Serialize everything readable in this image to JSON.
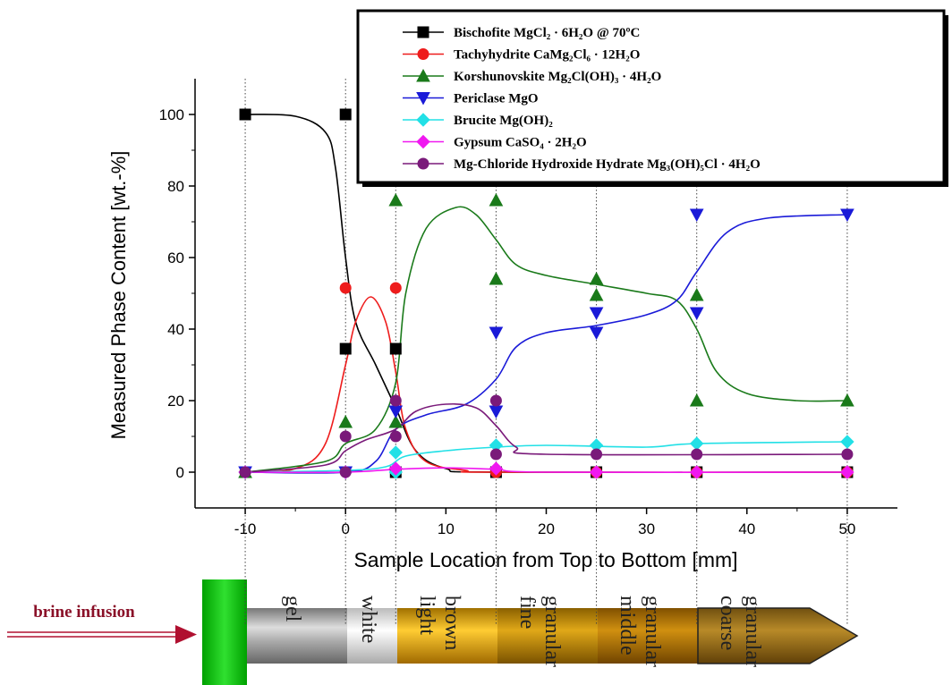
{
  "chart_data": {
    "type": "line",
    "y_label": "Measured Phase Content [wt.-%]",
    "x_label": "Sample Location from Top to Bottom [mm]",
    "xlim": [
      -15,
      55
    ],
    "xticks": [
      -10,
      0,
      10,
      20,
      30,
      40,
      50
    ],
    "ylim": [
      -10,
      110
    ],
    "yticks": [
      0,
      20,
      40,
      60,
      80,
      100
    ],
    "legend": "top-right",
    "series": [
      {
        "name": "Bischofite  MgCl₂ · 6H₂O @ 70ºC",
        "color": "#000000",
        "marker": "square",
        "x": [
          -10,
          0,
          0,
          5,
          5,
          15,
          25,
          35,
          50
        ],
        "values": [
          100,
          100,
          34.5,
          34.5,
          0,
          0,
          0,
          0,
          0
        ],
        "line_x": [
          -10,
          -5,
          -2,
          -1,
          0,
          1,
          3,
          5,
          7,
          10,
          15,
          50
        ],
        "line_values": [
          100,
          99.5,
          95,
          85,
          60,
          42,
          30,
          18,
          6,
          1,
          0,
          0
        ]
      },
      {
        "name": "Tachyhydrite  CaMg₂Cl₆ · 12H₂O",
        "color": "#ee1c1c",
        "marker": "circle",
        "x": [
          -10,
          0,
          5,
          15,
          25,
          35,
          50
        ],
        "values": [
          0,
          51.5,
          51.5,
          0,
          0,
          0,
          0
        ],
        "line_x": [
          -10,
          -5,
          -2,
          0,
          1,
          2.5,
          4,
          5,
          6,
          8,
          12,
          15,
          50
        ],
        "line_values": [
          0,
          1,
          8,
          30,
          42,
          49,
          42,
          28,
          12,
          3,
          0.5,
          0,
          0
        ]
      },
      {
        "name": "Korshunovskite  Mg₂Cl(OH)₃ · 4H₂O",
        "color": "#1a7a1a",
        "marker": "triangle-up",
        "x": [
          -10,
          0,
          5,
          5,
          15,
          15,
          25,
          25,
          35,
          35,
          50
        ],
        "values": [
          0,
          14,
          14,
          76,
          76,
          54,
          54,
          49.5,
          49.5,
          20,
          20
        ],
        "line_x": [
          -10,
          -2,
          0,
          3,
          5,
          6,
          8,
          11,
          13,
          15,
          17,
          20,
          25,
          30,
          33,
          35,
          37,
          40,
          45,
          50
        ],
        "line_values": [
          0,
          3,
          8,
          12,
          25,
          50,
          68,
          74,
          72,
          65,
          58,
          55,
          52.5,
          50,
          48,
          40,
          28,
          22,
          20,
          20
        ]
      },
      {
        "name": "Periclase  MgO",
        "color": "#1a1ad8",
        "marker": "triangle-down",
        "x": [
          -10,
          0,
          5,
          15,
          15,
          25,
          25,
          35,
          35,
          50
        ],
        "values": [
          0,
          0,
          17,
          17,
          39,
          39,
          44.5,
          44.5,
          72,
          72
        ],
        "line_x": [
          -10,
          0,
          3,
          5,
          8,
          12,
          15,
          17,
          20,
          25,
          30,
          33,
          35,
          38,
          42,
          50
        ],
        "line_values": [
          0,
          0,
          3,
          12,
          16,
          19,
          26,
          35,
          39,
          41,
          44,
          48,
          56,
          67,
          71,
          72
        ]
      },
      {
        "name": "Brucite  Mg(OH)₂",
        "color": "#22e0e6",
        "marker": "diamond",
        "x": [
          -10,
          0,
          5,
          5,
          15,
          25,
          35,
          50
        ],
        "values": [
          0,
          0,
          0,
          5.5,
          7.5,
          7.5,
          8,
          8.5
        ],
        "line_x": [
          -10,
          0,
          4,
          6,
          10,
          15,
          20,
          30,
          35,
          50
        ],
        "line_values": [
          0,
          0.5,
          1.5,
          4.5,
          6,
          7,
          7.5,
          7,
          8,
          8.5
        ]
      },
      {
        "name": "Gypsum  CaSO₄ · 2H₂O",
        "color": "#f018f0",
        "marker": "diamond",
        "x": [
          -10,
          0,
          5,
          15,
          25,
          35,
          50
        ],
        "values": [
          0,
          0,
          1,
          1,
          0,
          0,
          0
        ],
        "line_x": [
          -10,
          0,
          5,
          10,
          15,
          20,
          50
        ],
        "line_values": [
          0,
          0,
          0.8,
          1.2,
          0.8,
          0,
          0
        ]
      },
      {
        "name": "Mg-Chloride Hydroxide Hydrate  Mg₃(OH)₅Cl · 4H₂O",
        "color": "#7a1a7a",
        "marker": "circle",
        "x": [
          -10,
          0,
          0,
          5,
          5,
          15,
          15,
          25,
          35,
          50
        ],
        "values": [
          0,
          0,
          10,
          10,
          20,
          20,
          5,
          5,
          5,
          5
        ],
        "line_x": [
          -10,
          -2,
          0,
          2,
          5,
          7,
          10,
          13,
          15,
          17,
          20,
          50
        ],
        "line_values": [
          0,
          2,
          6,
          9,
          12,
          17,
          19,
          18,
          13,
          7,
          5,
          5
        ]
      }
    ]
  },
  "sample_rod": {
    "label": "brine infusion",
    "zones": [
      [
        "gel"
      ],
      [
        "white"
      ],
      [
        "light",
        "brown"
      ],
      [
        "fine",
        "granular"
      ],
      [
        "middle",
        "granular"
      ],
      [
        "coarse",
        "granular"
      ]
    ]
  }
}
